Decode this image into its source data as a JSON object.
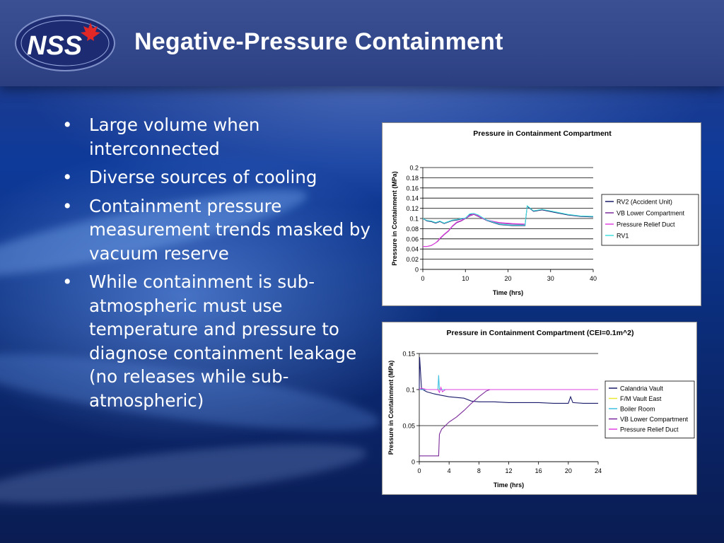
{
  "slide": {
    "title": "Negative-Pressure Containment",
    "logo_text": "NSS"
  },
  "bullets": [
    "Large volume when interconnected",
    "Diverse sources of cooling",
    "Containment  pressure measurement trends masked by vacuum reserve",
    "While containment is sub-atmospheric must use temperature and pressure to diagnose containment leakage (no releases while sub-atmospheric)"
  ],
  "colors": {
    "background": "#0e3a9a",
    "title": "#ffffff",
    "logo_red": "#e22727"
  },
  "chart_data": [
    {
      "type": "line",
      "title": "Pressure in Containment Compartment",
      "xlabel": "Time (hrs)",
      "ylabel": "Pressure in Containment (MPa)",
      "xlim": [
        0,
        40
      ],
      "ylim": [
        0,
        0.2
      ],
      "xticks": [
        "0",
        "10",
        "20",
        "30",
        "40"
      ],
      "yticks": [
        "0",
        "0.02",
        "0.04",
        "0.06",
        "0.08",
        "0.1",
        "0.12",
        "0.14",
        "0.16",
        "0.18",
        "0.2"
      ],
      "grid": "horizontal",
      "legend": "right",
      "series": [
        {
          "name": "RV2 (Accident Unit)",
          "color": "#1a1a6b",
          "x": [
            0,
            1,
            2,
            3,
            4,
            5,
            6,
            7,
            8,
            9,
            10,
            11,
            12,
            13,
            15,
            18,
            21,
            24,
            24.5,
            26,
            28,
            31,
            34,
            37,
            40
          ],
          "y": [
            0.1,
            0.095,
            0.094,
            0.091,
            0.094,
            0.09,
            0.093,
            0.096,
            0.097,
            0.099,
            0.1,
            0.108,
            0.109,
            0.106,
            0.096,
            0.088,
            0.086,
            0.086,
            0.124,
            0.114,
            0.117,
            0.112,
            0.107,
            0.104,
            0.103
          ]
        },
        {
          "name": "VB Lower Compartment",
          "color": "#7a2a9a",
          "x": [
            0,
            1,
            2,
            3,
            3.5,
            4,
            4.5,
            5,
            6,
            7,
            8,
            9,
            10,
            11,
            12,
            15,
            18,
            21,
            24
          ],
          "y": [
            0.045,
            0.045,
            0.047,
            0.052,
            0.055,
            0.06,
            0.064,
            0.068,
            0.075,
            0.085,
            0.092,
            0.095,
            0.1,
            0.105,
            0.108,
            0.096,
            0.091,
            0.089,
            0.088
          ]
        },
        {
          "name": "Pressure Relief Duct",
          "color": "#e040e0",
          "x": [
            0,
            1,
            2,
            3,
            3.5,
            4,
            4.5,
            5,
            6,
            7,
            8,
            9,
            10,
            11,
            12,
            15,
            18,
            21,
            24
          ],
          "y": [
            0.045,
            0.045,
            0.047,
            0.052,
            0.056,
            0.061,
            0.065,
            0.069,
            0.076,
            0.086,
            0.093,
            0.096,
            0.101,
            0.106,
            0.109,
            0.097,
            0.092,
            0.09,
            0.089
          ]
        },
        {
          "name": "RV1",
          "color": "#40e0e0",
          "x": [
            0,
            1,
            2,
            3,
            4,
            5,
            6,
            7,
            8,
            9,
            10,
            11,
            12,
            13,
            15,
            18,
            21,
            24,
            24.5,
            26,
            28,
            31,
            34,
            37,
            40
          ],
          "y": [
            0.1,
            0.096,
            0.095,
            0.092,
            0.095,
            0.091,
            0.094,
            0.097,
            0.098,
            0.1,
            0.101,
            0.109,
            0.11,
            0.107,
            0.097,
            0.089,
            0.087,
            0.087,
            0.125,
            0.115,
            0.118,
            0.113,
            0.108,
            0.105,
            0.104
          ]
        }
      ]
    },
    {
      "type": "line",
      "title": "Pressure in Containment Compartment (CEI=0.1m^2)",
      "xlabel": "Time (hrs)",
      "ylabel": "Pressure in Containment (MPa)",
      "xlim": [
        0,
        24
      ],
      "ylim": [
        0,
        0.15
      ],
      "xticks": [
        "0",
        "4",
        "8",
        "12",
        "16",
        "20",
        "24"
      ],
      "yticks": [
        "0",
        "0.05",
        "0.1",
        "0.15"
      ],
      "grid": "horizontal",
      "legend": "right",
      "series": [
        {
          "name": "Calandria Vault",
          "color": "#1a1a6b",
          "x": [
            0,
            0.05,
            0.3,
            1,
            2,
            3,
            4,
            5,
            6,
            7,
            8,
            10,
            12,
            14,
            16,
            18,
            20,
            20.3,
            20.6,
            22,
            24
          ],
          "y": [
            0.1,
            0.145,
            0.101,
            0.097,
            0.094,
            0.092,
            0.09,
            0.089,
            0.088,
            0.084,
            0.083,
            0.083,
            0.082,
            0.082,
            0.082,
            0.081,
            0.081,
            0.09,
            0.082,
            0.081,
            0.081
          ]
        },
        {
          "name": "F/M Vault East",
          "color": "#e8e830",
          "x": [
            0,
            1,
            2,
            2.5,
            3,
            4,
            5,
            6,
            8,
            12,
            16,
            20,
            24
          ],
          "y": [
            0.1,
            0.1,
            0.1,
            0.1,
            0.1,
            0.1,
            0.1,
            0.1,
            0.1,
            0.1,
            0.1,
            0.1,
            0.1
          ]
        },
        {
          "name": "Boiler Room",
          "color": "#40c0e0",
          "x": [
            0,
            1,
            2,
            2.5,
            2.6,
            2.7,
            3,
            4,
            6,
            8,
            12,
            16,
            20,
            24
          ],
          "y": [
            0.1,
            0.1,
            0.1,
            0.1,
            0.12,
            0.1,
            0.1,
            0.1,
            0.1,
            0.1,
            0.1,
            0.1,
            0.1,
            0.1
          ]
        },
        {
          "name": "VB Lower Compartment",
          "color": "#7a2a9a",
          "x": [
            0,
            1,
            2,
            2.6,
            2.7,
            3,
            3.5,
            4,
            5,
            6,
            7,
            8,
            9,
            9.5,
            12,
            16,
            20,
            24
          ],
          "y": [
            0.008,
            0.008,
            0.008,
            0.008,
            0.038,
            0.045,
            0.05,
            0.055,
            0.062,
            0.071,
            0.081,
            0.09,
            0.098,
            0.1,
            0.1,
            0.1,
            0.1,
            0.1
          ]
        },
        {
          "name": "Pressure Relief Duct",
          "color": "#e040e0",
          "x": [
            0,
            0.3,
            1,
            2,
            2.5,
            2.7,
            2.9,
            3.1,
            3.5,
            4,
            6,
            8,
            12,
            16,
            20,
            24
          ],
          "y": [
            0.1,
            0.102,
            0.1,
            0.1,
            0.1,
            0.096,
            0.103,
            0.097,
            0.1,
            0.1,
            0.1,
            0.1,
            0.1,
            0.1,
            0.1,
            0.1
          ]
        }
      ]
    }
  ]
}
